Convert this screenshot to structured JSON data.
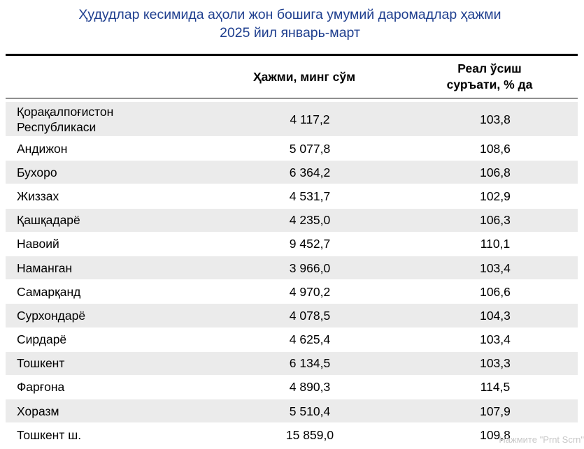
{
  "title": {
    "line1": "Ҳудудлар кесимида аҳоли жон бошига умумий даромадлар ҳажми",
    "line2": "2025 йил январь-март"
  },
  "columns": {
    "volume": "Ҳажми, минг сўм",
    "growth_line1": "Реал ўсиш",
    "growth_line2": "суръати, % да"
  },
  "rows": [
    {
      "name": "Қорақалпоғистон\nРеспубликаси",
      "volume": "4 117,2",
      "growth": "103,8"
    },
    {
      "name": "Андижон",
      "volume": "5 077,8",
      "growth": "108,6"
    },
    {
      "name": "Бухоро",
      "volume": "6 364,2",
      "growth": "106,8"
    },
    {
      "name": "Жиззах",
      "volume": "4 531,7",
      "growth": "102,9"
    },
    {
      "name": "Қашқадарё",
      "volume": "4 235,0",
      "growth": "106,3"
    },
    {
      "name": "Навоий",
      "volume": "9 452,7",
      "growth": "110,1"
    },
    {
      "name": "Наманган",
      "volume": "3 966,0",
      "growth": "103,4"
    },
    {
      "name": "Самарқанд",
      "volume": "4 970,2",
      "growth": "106,6"
    },
    {
      "name": "Сурхондарё",
      "volume": "4 078,5",
      "growth": "104,3"
    },
    {
      "name": "Сирдарё",
      "volume": "4 625,4",
      "growth": "103,4"
    },
    {
      "name": "Тошкент",
      "volume": "6 134,5",
      "growth": "103,3"
    },
    {
      "name": "Фарғона",
      "volume": "4 890,3",
      "growth": "114,5"
    },
    {
      "name": "Хоразм",
      "volume": "5 510,4",
      "growth": "107,9"
    },
    {
      "name": "Тошкент ш.",
      "volume": "15 859,0",
      "growth": "109,8"
    }
  ],
  "watermark": "Нажмите \"Prnt Scrn\"",
  "colors": {
    "title": "#1f3f8f",
    "row_shade": "#ebebeb",
    "rule": "#000000"
  }
}
